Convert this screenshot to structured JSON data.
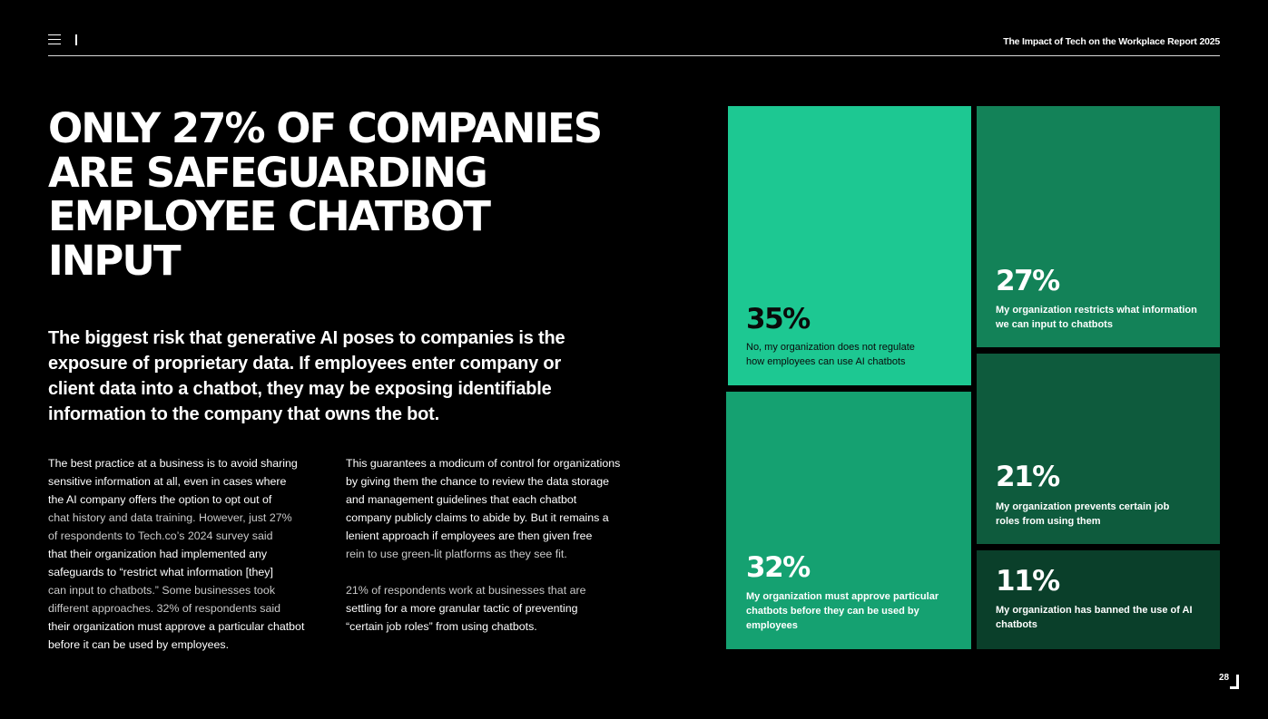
{
  "header": {
    "report_title": "The Impact of Tech on the Workplace Report 2025"
  },
  "headline": {
    "lines": [
      "ONLY 27% OF COMPANIES",
      "ARE SAFEGUARDING",
      "EMPLOYEE CHATBOT",
      "INPUT"
    ]
  },
  "lead": {
    "lines": [
      "The biggest risk that generative AI poses to companies is the",
      "exposure of proprietary data. If employees enter company or",
      "client data into a chatbot, they may be exposing identifiable",
      "information to the company that owns the bot."
    ]
  },
  "body_left": {
    "lines": [
      "The best practice at a business is to avoid sharing",
      "sensitive information at all, even in cases where",
      "the AI company offers the option to opt out of",
      "chat history and data training. However, just 27%",
      "of respondents to Tech.co’s 2024 survey said",
      "that their organization had implemented any",
      "safeguards to “restrict what information [they]",
      "can input to chatbots.” Some businesses took",
      "different approaches. 32% of respondents said",
      "their organization must approve a particular chatbot",
      "before it can be used by employees."
    ]
  },
  "body_right": {
    "para1": [
      "This guarantees a modicum of control for organizations",
      "by giving them the chance to review the data storage",
      "and management guidelines that each chatbot",
      "company publicly claims to abide by. But it remains a",
      "lenient approach if employees are then given free",
      "rein to use green-lit platforms as they see fit."
    ],
    "para2": [
      "21% of respondents work at businesses that are",
      "settling for a more granular tactic of preventing",
      "“certain job roles” from using chatbots."
    ]
  },
  "stats": [
    {
      "value": "35%",
      "lines": [
        "No, my organization does not regulate",
        "how employees can use AI chatbots"
      ],
      "color": "#1dc892"
    },
    {
      "value": "27%",
      "lines": [
        "My organization restricts what information",
        "we can input to chatbots"
      ],
      "color": "#138258"
    },
    {
      "value": "32%",
      "lines": [
        "My organization must approve particular",
        "chatbots before they can be used by",
        "employees"
      ],
      "color": "#15a171"
    },
    {
      "value": "21%",
      "lines": [
        "My organization prevents certain job",
        "roles from using them"
      ],
      "color": "#0e5b3d"
    },
    {
      "value": "11%",
      "lines": [
        "My organization has banned the use of AI",
        "chatbots"
      ],
      "color": "#0a3f2a"
    }
  ],
  "footer": {
    "page_number": "28"
  }
}
